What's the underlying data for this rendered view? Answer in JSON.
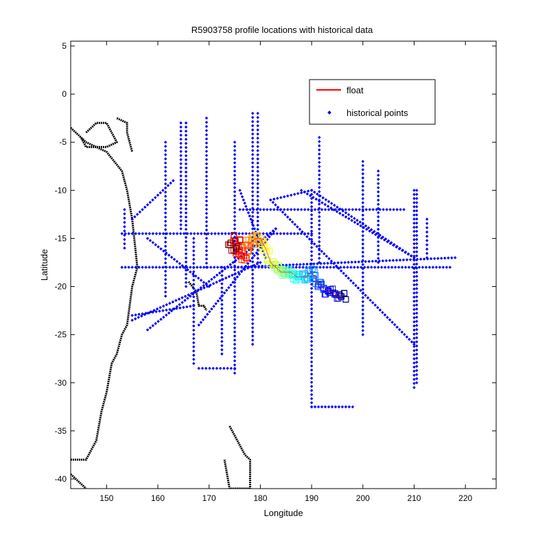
{
  "chart_data": {
    "type": "scatter",
    "title": "R5903758 profile locations with historical data",
    "xlabel": "Longitude",
    "ylabel": "Latitude",
    "xlim": [
      143,
      226
    ],
    "ylim": [
      -41,
      5.5
    ],
    "xticks": [
      150,
      160,
      170,
      180,
      190,
      200,
      210,
      220
    ],
    "yticks": [
      5,
      0,
      -5,
      -10,
      -15,
      -20,
      -25,
      -30,
      -35,
      -40
    ],
    "grid": false,
    "legend_position": "top-right",
    "legend": [
      {
        "label": "float",
        "marker": "line",
        "color": "#ff0000"
      },
      {
        "label": "historical points",
        "marker": "dot",
        "color": "#0000ff"
      }
    ],
    "series": [
      {
        "name": "float",
        "color_scale": "jet",
        "x": [
          174.5,
          175,
          175.5,
          176,
          176.5,
          177,
          178,
          179,
          180,
          181,
          182,
          183,
          184,
          185,
          186,
          187,
          188,
          189,
          190,
          191,
          192,
          193,
          194,
          195,
          196
        ],
        "y": [
          -16,
          -15.5,
          -15,
          -16.5,
          -17,
          -16,
          -15.5,
          -15,
          -15,
          -16,
          -17.5,
          -18,
          -18.5,
          -18.5,
          -18.5,
          -19,
          -19,
          -19,
          -18.5,
          -19.5,
          -20,
          -20.5,
          -20.5,
          -21,
          -21
        ]
      },
      {
        "name": "historical points",
        "color": "#0000ff",
        "tracks": [
          {
            "x": [
              153,
              190
            ],
            "y": [
              -14.5,
              -14.5
            ]
          },
          {
            "x": [
              153,
              217
            ],
            "y": [
              -18,
              -18
            ]
          },
          {
            "x": [
              155,
              180
            ],
            "y": [
              -23.5,
              -17.5
            ]
          },
          {
            "x": [
              155,
              167
            ],
            "y": [
              -23,
              -22
            ]
          },
          {
            "x": [
              158,
              183
            ],
            "y": [
              -24.5,
              -14
            ]
          },
          {
            "x": [
              168,
              183
            ],
            "y": [
              -24,
              -14
            ]
          },
          {
            "x": [
              182,
              190
            ],
            "y": [
              -11,
              -10
            ]
          },
          {
            "x": [
              190,
              210
            ],
            "y": [
              -10,
              -17
            ]
          },
          {
            "x": [
              188,
              210
            ],
            "y": [
              -10,
              -17
            ]
          },
          {
            "x": [
              182,
              210
            ],
            "y": [
              -11,
              -26
            ]
          },
          {
            "x": [
              176,
              208
            ],
            "y": [
              -12,
              -12
            ]
          },
          {
            "x": [
              175,
              218
            ],
            "y": [
              -18,
              -17
            ]
          },
          {
            "x": [
              155,
              163
            ],
            "y": [
              -13,
              -9
            ]
          },
          {
            "x": [
              158,
              170
            ],
            "y": [
              -15,
              -20
            ]
          },
          {
            "x": [
              190,
              198
            ],
            "y": [
              -32.5,
              -32.5
            ]
          },
          {
            "x": [
              168,
              175
            ],
            "y": [
              -28.5,
              -28.5
            ]
          },
          {
            "x": [
              176,
              181
            ],
            "y": [
              -10,
              -17
            ]
          }
        ],
        "meridians": [
          {
            "x": 153.5,
            "y": [
              -16,
              -12
            ]
          },
          {
            "x": 161.5,
            "y": [
              -21,
              -5
            ]
          },
          {
            "x": 164.5,
            "y": [
              -14,
              -3
            ]
          },
          {
            "x": 165.5,
            "y": [
              -20,
              -3
            ]
          },
          {
            "x": 167,
            "y": [
              -28,
              -15
            ]
          },
          {
            "x": 169.5,
            "y": [
              -18,
              -2.5
            ]
          },
          {
            "x": 172.5,
            "y": [
              -27,
              -18
            ]
          },
          {
            "x": 175,
            "y": [
              -29,
              -5
            ]
          },
          {
            "x": 178.5,
            "y": [
              -26,
              -2
            ]
          },
          {
            "x": 179.5,
            "y": [
              -17.5,
              -2
            ]
          },
          {
            "x": 190,
            "y": [
              -32.5,
              -10
            ]
          },
          {
            "x": 191.5,
            "y": [
              -17.5,
              -4.5
            ]
          },
          {
            "x": 200,
            "y": [
              -25,
              -7
            ]
          },
          {
            "x": 203,
            "y": [
              -17.5,
              -8
            ]
          },
          {
            "x": 210,
            "y": [
              -30.5,
              -10
            ]
          },
          {
            "x": 210.5,
            "y": [
              -30,
              -10
            ]
          },
          {
            "x": 212.5,
            "y": [
              -17,
              -13
            ]
          }
        ]
      },
      {
        "name": "coastline",
        "color": "#000000",
        "outlines": [
          {
            "x": [
              143,
              146,
              150,
              153,
              154,
              155,
              156,
              155,
              154,
              153,
              152,
              151,
              150,
              149,
              148,
              146,
              143
            ],
            "y": [
              -3.5,
              -5,
              -6,
              -8,
              -10,
              -13,
              -18,
              -20,
              -24,
              -25,
              -27,
              -28,
              -31,
              -33,
              -36,
              -38,
              -38
            ]
          },
          {
            "x": [
              146,
              148,
              150,
              151,
              152,
              150,
              148,
              146,
              145
            ],
            "y": [
              -4,
              -3,
              -3,
              -4,
              -5,
              -5.5,
              -5.5,
              -5.5,
              -4.5
            ]
          },
          {
            "x": [
              152,
              154,
              154,
              155
            ],
            "y": [
              -2.5,
              -3,
              -4,
              -6
            ]
          },
          {
            "x": [
              166,
              167.5,
              168,
              169,
              169.5
            ],
            "y": [
              -19.5,
              -20.5,
              -22,
              -22,
              -22.5
            ]
          },
          {
            "x": [
              174,
              175.5,
              177,
              178,
              178,
              176,
              174,
              173
            ],
            "y": [
              -34.5,
              -36,
              -37.5,
              -38,
              -41,
              -41,
              -41,
              -38
            ]
          },
          {
            "x": [
              143,
              146
            ],
            "y": [
              -39.5,
              -41
            ]
          }
        ]
      }
    ]
  }
}
